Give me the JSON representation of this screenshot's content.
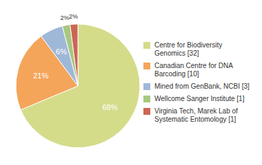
{
  "chart_data": {
    "type": "pie",
    "categories": [
      "Centre for Biodiversity\nGenomics [32]",
      "Canadian Centre for DNA\nBarcoding [10]",
      "Mined from GenBank, NCBI [3]",
      "Wellcome Sanger Institute [1]",
      "Virginia Tech, Marek Lab of\nSystematic Entomology [1]"
    ],
    "values": [
      68,
      21,
      6,
      2,
      2
    ],
    "value_labels": [
      "68%",
      "21%",
      "6%",
      "2%",
      "2%"
    ],
    "colors": [
      "#d4dc8a",
      "#f4a55a",
      "#a0b8d8",
      "#a8c880",
      "#cc6655"
    ],
    "data_labels": true,
    "legend": "right"
  }
}
